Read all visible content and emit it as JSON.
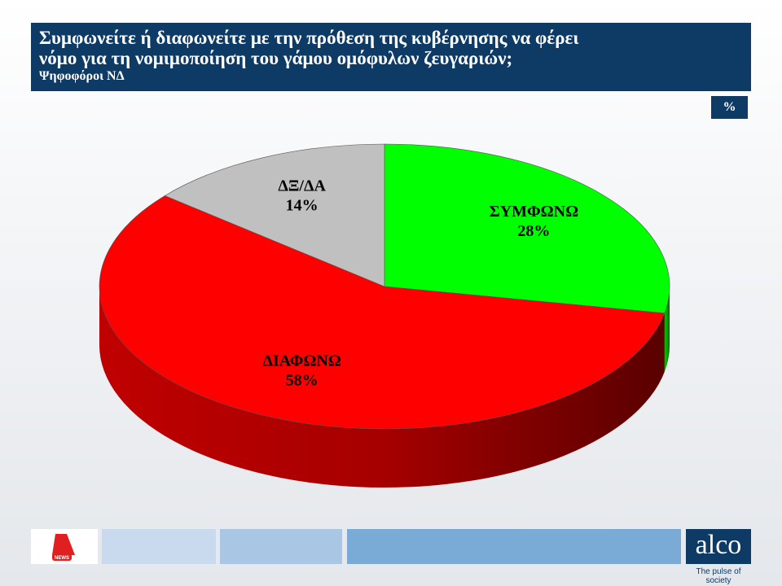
{
  "chart_data": {
    "type": "pie3d",
    "title": [
      "Συμφωνείτε ή διαφωνείτε με την πρόθεση της κυβέρνησης να φέρει",
      "νόμο για τη νομιμοποίηση του γάμου ομόφυλων ζευγαριών;"
    ],
    "subtitle": "Ψηφοφόροι ΝΔ",
    "unit_label": "%",
    "categories": [
      "ΣΥΜΦΩΝΩ",
      "ΔΙΑΦΩΝΩ",
      "ΔΞ/ΔΑ"
    ],
    "values": [
      28,
      58,
      14
    ],
    "value_labels": [
      "28%",
      "58%",
      "14%"
    ],
    "colors": [
      "#00ff00",
      "#ff0000",
      "#c0c0c0"
    ]
  },
  "footer": {
    "news": "NEWS",
    "brand": "alco",
    "tagline": "The pulse of society"
  }
}
